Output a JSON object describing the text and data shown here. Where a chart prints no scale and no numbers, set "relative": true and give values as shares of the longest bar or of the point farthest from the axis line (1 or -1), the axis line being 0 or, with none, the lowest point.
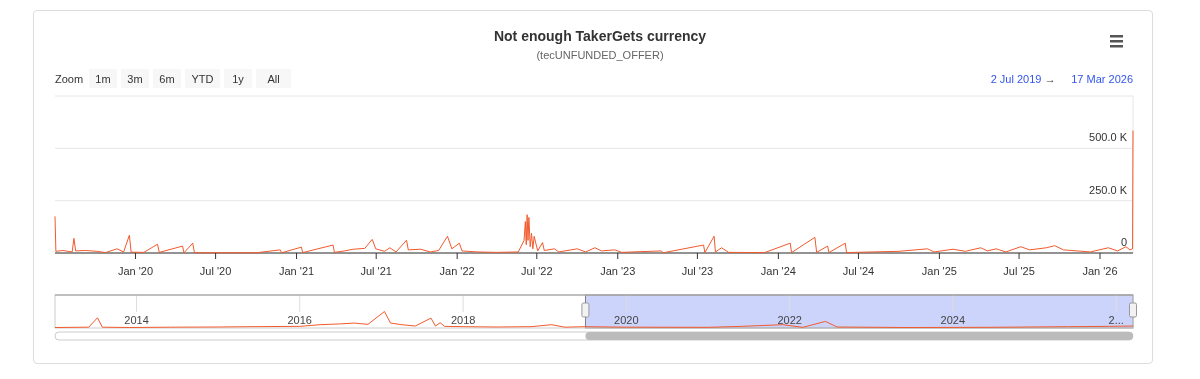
{
  "chart_data": [
    {
      "type": "line",
      "title": "Not enough TakerGets currency",
      "subtitle": "(tecUNFUNDED_OFFER)",
      "annotations": [
        "Zoom",
        "1m",
        "3m",
        "6m",
        "YTD",
        "1y",
        "All",
        "2 Jul 2019",
        "→",
        "17 Mar 2026"
      ],
      "xlim": [
        "2019-07-02",
        "2026-03-17"
      ],
      "xticks": [
        {
          "value": "2020-01-01",
          "label": "Jan '20"
        },
        {
          "value": "2020-07-01",
          "label": "Jul '20"
        },
        {
          "value": "2021-01-01",
          "label": "Jan '21"
        },
        {
          "value": "2021-07-01",
          "label": "Jul '21"
        },
        {
          "value": "2022-01-01",
          "label": "Jan '22"
        },
        {
          "value": "2022-07-01",
          "label": "Jul '22"
        },
        {
          "value": "2023-01-01",
          "label": "Jan '23"
        },
        {
          "value": "2023-07-01",
          "label": "Jul '23"
        },
        {
          "value": "2024-01-01",
          "label": "Jan '24"
        },
        {
          "value": "2024-07-01",
          "label": "Jul '24"
        },
        {
          "value": "2025-01-01",
          "label": "Jan '25"
        },
        {
          "value": "2025-07-01",
          "label": "Jul '25"
        },
        {
          "value": "2026-01-01",
          "label": "Jan '26"
        }
      ],
      "ylim": [
        0,
        750000
      ],
      "yticks": [
        0,
        {
          "value": 250000,
          "label": "250.0 K"
        },
        {
          "value": 500000,
          "label": "500.0 K"
        },
        {
          "value": 750000,
          "label": null
        }
      ],
      "grid": "y",
      "marker": "none",
      "line_style": "solid",
      "series": [
        {
          "color": "#f25a2c",
          "x": [
            "2019-07-02",
            "2019-07-04",
            "2019-07-20",
            "2019-08-10",
            "2019-08-14",
            "2019-08-18",
            "2019-09-10",
            "2019-10-05",
            "2019-10-25",
            "2019-11-20",
            "2019-12-05",
            "2019-12-18",
            "2019-12-22",
            "2020-01-20",
            "2020-02-20",
            "2020-02-24",
            "2020-04-17",
            "2020-04-20",
            "2020-05-10",
            "2020-05-14",
            "2020-07-15",
            "2020-10-01",
            "2020-11-25",
            "2020-11-28",
            "2021-01-12",
            "2021-01-15",
            "2021-03-25",
            "2021-03-28",
            "2021-04-20",
            "2021-05-10",
            "2021-06-05",
            "2021-06-22",
            "2021-06-30",
            "2021-07-20",
            "2021-08-01",
            "2021-08-15",
            "2021-09-08",
            "2021-09-12",
            "2021-10-10",
            "2021-11-01",
            "2021-11-20",
            "2021-12-10",
            "2021-12-20",
            "2022-01-06",
            "2022-01-12",
            "2022-02-15",
            "2022-04-01",
            "2022-05-20",
            "2022-06-02",
            "2022-06-05",
            "2022-06-07",
            "2022-06-09",
            "2022-06-11",
            "2022-06-13",
            "2022-06-16",
            "2022-06-19",
            "2022-06-22",
            "2022-06-25",
            "2022-07-03",
            "2022-07-14",
            "2022-07-18",
            "2022-08-10",
            "2022-08-20",
            "2022-10-01",
            "2022-10-20",
            "2022-11-10",
            "2022-11-25",
            "2022-12-25",
            "2023-01-10",
            "2023-04-10",
            "2023-04-14",
            "2023-07-15",
            "2023-07-18",
            "2023-08-08",
            "2023-08-11",
            "2023-08-25",
            "2023-09-10",
            "2023-12-01",
            "2024-01-28",
            "2024-01-31",
            "2024-03-24",
            "2024-03-28",
            "2024-04-22",
            "2024-04-25",
            "2024-06-01",
            "2024-06-04",
            "2024-08-01",
            "2024-10-01",
            "2024-12-05",
            "2024-12-20",
            "2025-02-01",
            "2025-03-01",
            "2025-04-05",
            "2025-04-20",
            "2025-05-10",
            "2025-06-01",
            "2025-07-05",
            "2025-07-25",
            "2025-09-01",
            "2025-09-20",
            "2025-10-10",
            "2025-11-10",
            "2025-12-10",
            "2026-01-20",
            "2026-02-10",
            "2026-03-01",
            "2026-03-10",
            "2026-03-16",
            "2026-03-17"
          ],
          "values": [
            175000,
            8000,
            12000,
            5000,
            70000,
            10000,
            12000,
            8000,
            2000,
            20000,
            5000,
            85000,
            4000,
            3000,
            42000,
            3000,
            33000,
            1000,
            47000,
            1000,
            1000,
            1000,
            15000,
            1000,
            28000,
            2000,
            38000,
            3000,
            10000,
            18000,
            22000,
            65000,
            20000,
            8000,
            25000,
            5000,
            61000,
            15000,
            18000,
            5000,
            12000,
            80000,
            20000,
            47000,
            10000,
            5000,
            3000,
            5000,
            60000,
            150000,
            40000,
            183000,
            60000,
            170000,
            30000,
            94000,
            20000,
            80000,
            10000,
            50000,
            12000,
            20000,
            5000,
            20000,
            5000,
            25000,
            10000,
            15000,
            3000,
            10000,
            1000,
            38000,
            2000,
            80000,
            5000,
            25000,
            3000,
            2000,
            47000,
            2000,
            75000,
            3000,
            33000,
            2000,
            47000,
            2000,
            5000,
            8000,
            20000,
            5000,
            18000,
            8000,
            25000,
            10000,
            20000,
            5000,
            30000,
            15000,
            25000,
            35000,
            15000,
            10000,
            5000,
            25000,
            10000,
            30000,
            15000,
            20000,
            585000
          ]
        }
      ]
    },
    {
      "type": "line",
      "relative": true,
      "tick_labels": "x",
      "grid": "x",
      "marker": "none",
      "xlim": [
        "2013-01-01",
        "2026-03-17"
      ],
      "xticks": [
        {
          "value": "2014-01-01",
          "label": "2014"
        },
        {
          "value": "2016-01-01",
          "label": "2016"
        },
        {
          "value": "2018-01-01",
          "label": "2018"
        },
        {
          "value": "2020-01-01",
          "label": "2020"
        },
        {
          "value": "2022-01-01",
          "label": "2022"
        },
        {
          "value": "2024-01-01",
          "label": "2024"
        },
        {
          "value": "2026-01-01",
          "label": "2..."
        }
      ],
      "bands": [
        {
          "axis": "x",
          "from": "2019-07-02",
          "to": "2026-03-17",
          "color": "#cdd4fb"
        }
      ],
      "series": [
        {
          "color": "#f25a2c",
          "x": [
            "2013-01-01",
            "2013-06-01",
            "2013-07-10",
            "2013-08-01",
            "2013-12-01",
            "2014-06-01",
            "2015-01-01",
            "2015-06-01",
            "2016-01-01",
            "2016-04-01",
            "2016-07-01",
            "2016-09-01",
            "2016-11-01",
            "2017-01-14",
            "2017-02-10",
            "2017-04-01",
            "2017-06-01",
            "2017-08-10",
            "2017-08-30",
            "2017-09-20",
            "2017-10-10",
            "2018-01-01",
            "2018-06-01",
            "2018-11-01",
            "2019-02-01",
            "2019-04-01",
            "2019-07-01",
            "2020-01-01",
            "2021-01-01",
            "2021-06-01",
            "2021-12-01",
            "2022-03-01",
            "2022-06-10",
            "2022-08-01",
            "2023-06-01",
            "2024-06-01",
            "2025-06-01",
            "2025-12-01",
            "2026-03-17"
          ],
          "values": [
            0.03,
            0.05,
            0.62,
            0.05,
            0.03,
            0.05,
            0.06,
            0.08,
            0.1,
            0.2,
            0.25,
            0.3,
            0.22,
            1,
            0.3,
            0.2,
            0.12,
            0.6,
            0.12,
            0.32,
            0.1,
            0.08,
            0.06,
            0.08,
            0.2,
            0.05,
            0.08,
            0.05,
            0.04,
            0.1,
            0.2,
            0.04,
            0.4,
            0.06,
            0.03,
            0.04,
            0.08,
            0.1,
            0.12
          ]
        }
      ]
    }
  ]
}
